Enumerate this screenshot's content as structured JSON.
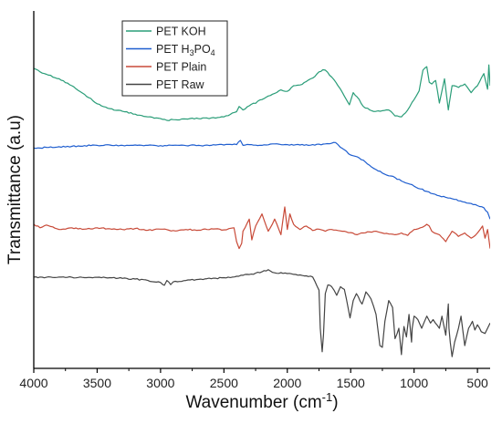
{
  "chart_data": {
    "type": "line",
    "xlabel": "Wavenumber (cm",
    "xlabel_sup": "-1",
    "xlabel_close": ")",
    "ylabel": "Transmittance (a.u)",
    "xlim": [
      4000,
      400
    ],
    "x_reversed": true,
    "y_ticks_shown": false,
    "x_ticks": [
      4000,
      3500,
      3000,
      2500,
      2000,
      1500,
      1000,
      500
    ],
    "x_tick_labels": [
      "4000",
      "3500",
      "3000",
      "2500",
      "2000",
      "1500",
      "1000",
      "500"
    ],
    "ylim": [
      0,
      100
    ],
    "grid": false,
    "legend_position": "top-left",
    "series": [
      {
        "name": "PET KOH",
        "name_parts": [
          {
            "t": "PET KOH",
            "s": "n"
          }
        ],
        "color": "#2a9d78",
        "x": [
          4000,
          3950,
          3900,
          3800,
          3700,
          3600,
          3500,
          3400,
          3300,
          3200,
          3100,
          3000,
          2950,
          2900,
          2800,
          2700,
          2600,
          2500,
          2400,
          2380,
          2350,
          2300,
          2200,
          2100,
          2050,
          2000,
          1950,
          1900,
          1850,
          1800,
          1750,
          1720,
          1700,
          1650,
          1600,
          1550,
          1510,
          1480,
          1450,
          1400,
          1350,
          1300,
          1250,
          1200,
          1150,
          1100,
          1050,
          1000,
          960,
          930,
          900,
          880,
          860,
          830,
          800,
          780,
          760,
          730,
          720,
          700,
          650,
          600,
          550,
          500,
          450,
          420,
          410,
          400
        ],
        "y": [
          85.0,
          84.0,
          83.3,
          82.0,
          80.0,
          77.5,
          74.8,
          73.4,
          72.6,
          71.8,
          71.0,
          70.5,
          70.0,
          70.2,
          70.4,
          70.5,
          70.7,
          71.0,
          72.5,
          74.0,
          73.0,
          74.2,
          76.0,
          77.8,
          78.8,
          78.4,
          80.0,
          80.2,
          81.2,
          82.2,
          84.0,
          84.6,
          84.5,
          82.5,
          80.0,
          77.0,
          74.5,
          78.0,
          76.8,
          74.0,
          73.0,
          72.6,
          72.8,
          73.0,
          71.3,
          71.0,
          73.0,
          76.0,
          78.5,
          84.5,
          85.5,
          81.0,
          80.5,
          81.5,
          75.0,
          78.5,
          82.0,
          73.0,
          75.5,
          80.0,
          79.5,
          80.5,
          78.0,
          80.0,
          83.5,
          79.0,
          86.0,
          80.0
        ]
      },
      {
        "name": "PET H3PO4",
        "name_parts": [
          {
            "t": "PET H",
            "s": "n"
          },
          {
            "t": "3",
            "s": "sub"
          },
          {
            "t": "PO",
            "s": "n"
          },
          {
            "t": "4",
            "s": "sub"
          }
        ],
        "color": "#1f5ecf",
        "x": [
          4000,
          3900,
          3800,
          3700,
          3600,
          3500,
          3400,
          3300,
          3200,
          3100,
          3000,
          2900,
          2800,
          2700,
          2600,
          2500,
          2400,
          2370,
          2350,
          2300,
          2200,
          2100,
          2000,
          1900,
          1800,
          1700,
          1650,
          1620,
          1600,
          1550,
          1500,
          1450,
          1400,
          1350,
          1300,
          1250,
          1200,
          1150,
          1100,
          1050,
          1000,
          950,
          900,
          850,
          800,
          750,
          700,
          650,
          600,
          550,
          500,
          450,
          420,
          400
        ],
        "y": [
          62.0,
          62.2,
          62.4,
          62.5,
          62.7,
          62.8,
          62.9,
          62.8,
          62.9,
          62.8,
          62.7,
          62.8,
          62.7,
          62.8,
          62.8,
          62.9,
          63.0,
          64.2,
          62.8,
          63.0,
          62.8,
          63.2,
          63.0,
          62.9,
          63.0,
          63.2,
          63.4,
          63.6,
          63.0,
          61.5,
          60.0,
          59.5,
          58.5,
          57.0,
          55.8,
          54.8,
          54.0,
          53.5,
          52.5,
          51.8,
          51.0,
          50.2,
          49.5,
          48.8,
          48.2,
          47.8,
          47.4,
          46.8,
          46.4,
          46.0,
          45.4,
          44.8,
          43.5,
          41.5
        ]
      },
      {
        "name": "PET Plain",
        "name_parts": [
          {
            "t": "PET Plain",
            "s": "n"
          }
        ],
        "color": "#c84a38",
        "x": [
          4000,
          3950,
          3900,
          3800,
          3700,
          3600,
          3500,
          3400,
          3300,
          3200,
          3100,
          3000,
          2900,
          2800,
          2700,
          2600,
          2500,
          2420,
          2400,
          2380,
          2360,
          2350,
          2300,
          2280,
          2250,
          2200,
          2150,
          2100,
          2050,
          2020,
          2000,
          1980,
          1950,
          1900,
          1850,
          1800,
          1750,
          1700,
          1650,
          1600,
          1550,
          1500,
          1450,
          1400,
          1350,
          1300,
          1250,
          1200,
          1150,
          1100,
          1050,
          1000,
          950,
          900,
          880,
          860,
          800,
          750,
          700,
          650,
          600,
          550,
          500,
          460,
          440,
          420,
          400
        ],
        "y": [
          40.0,
          39.0,
          39.8,
          38.5,
          39.0,
          38.6,
          39.0,
          38.7,
          38.5,
          38.8,
          38.3,
          38.6,
          38.2,
          38.5,
          38.3,
          38.7,
          38.4,
          39.0,
          35.0,
          33.0,
          34.5,
          38.0,
          41.5,
          35.5,
          39.5,
          43.0,
          38.0,
          41.5,
          37.0,
          45.0,
          38.5,
          43.0,
          40.0,
          38.5,
          39.5,
          38.2,
          38.6,
          38.0,
          38.5,
          38.2,
          38.0,
          37.6,
          37.0,
          37.5,
          37.8,
          38.0,
          37.5,
          37.2,
          37.0,
          37.5,
          36.8,
          38.5,
          39.0,
          40.0,
          39.5,
          38.0,
          37.0,
          35.0,
          38.0,
          36.5,
          37.5,
          36.0,
          37.5,
          39.5,
          36.0,
          38.5,
          33.0
        ]
      },
      {
        "name": "PET Raw",
        "name_parts": [
          {
            "t": "PET Raw",
            "s": "n"
          }
        ],
        "color": "#444444",
        "x": [
          4000,
          3900,
          3800,
          3700,
          3600,
          3500,
          3400,
          3300,
          3200,
          3100,
          3000,
          2970,
          2950,
          2920,
          2900,
          2800,
          2700,
          2600,
          2500,
          2400,
          2350,
          2300,
          2200,
          2150,
          2100,
          2000,
          1900,
          1800,
          1750,
          1740,
          1725,
          1715,
          1700,
          1680,
          1650,
          1610,
          1580,
          1550,
          1505,
          1480,
          1455,
          1410,
          1380,
          1340,
          1300,
          1270,
          1250,
          1230,
          1200,
          1170,
          1150,
          1120,
          1100,
          1095,
          1080,
          1060,
          1040,
          1020,
          1015,
          1000,
          970,
          940,
          900,
          870,
          850,
          800,
          780,
          750,
          730,
          725,
          715,
          700,
          680,
          650,
          630,
          600,
          570,
          540,
          520,
          500,
          470,
          440,
          420,
          400
        ],
        "y": [
          24.8,
          24.7,
          24.8,
          24.7,
          24.6,
          24.7,
          24.6,
          24.4,
          24.2,
          23.8,
          23.2,
          22.4,
          23.8,
          22.6,
          23.4,
          23.8,
          24.1,
          24.3,
          24.6,
          25.0,
          25.3,
          25.5,
          26.3,
          26.9,
          26.0,
          25.8,
          25.4,
          24.8,
          21.0,
          10.0,
          3.2,
          8.0,
          20.0,
          22.5,
          22.0,
          19.5,
          22.0,
          21.2,
          13.0,
          18.0,
          20.0,
          17.0,
          20.5,
          18.5,
          14.0,
          5.0,
          4.5,
          12.0,
          18.0,
          16.0,
          7.0,
          10.0,
          2.4,
          5.0,
          10.5,
          7.5,
          14.0,
          6.0,
          10.0,
          13.5,
          12.5,
          10.0,
          13.5,
          11.5,
          12.5,
          10.0,
          13.5,
          8.0,
          17.0,
          10.0,
          6.0,
          1.8,
          6.0,
          10.0,
          13.5,
          5.0,
          10.0,
          12.0,
          9.5,
          11.0,
          9.0,
          8.5,
          10.0,
          11.5
        ]
      }
    ]
  }
}
